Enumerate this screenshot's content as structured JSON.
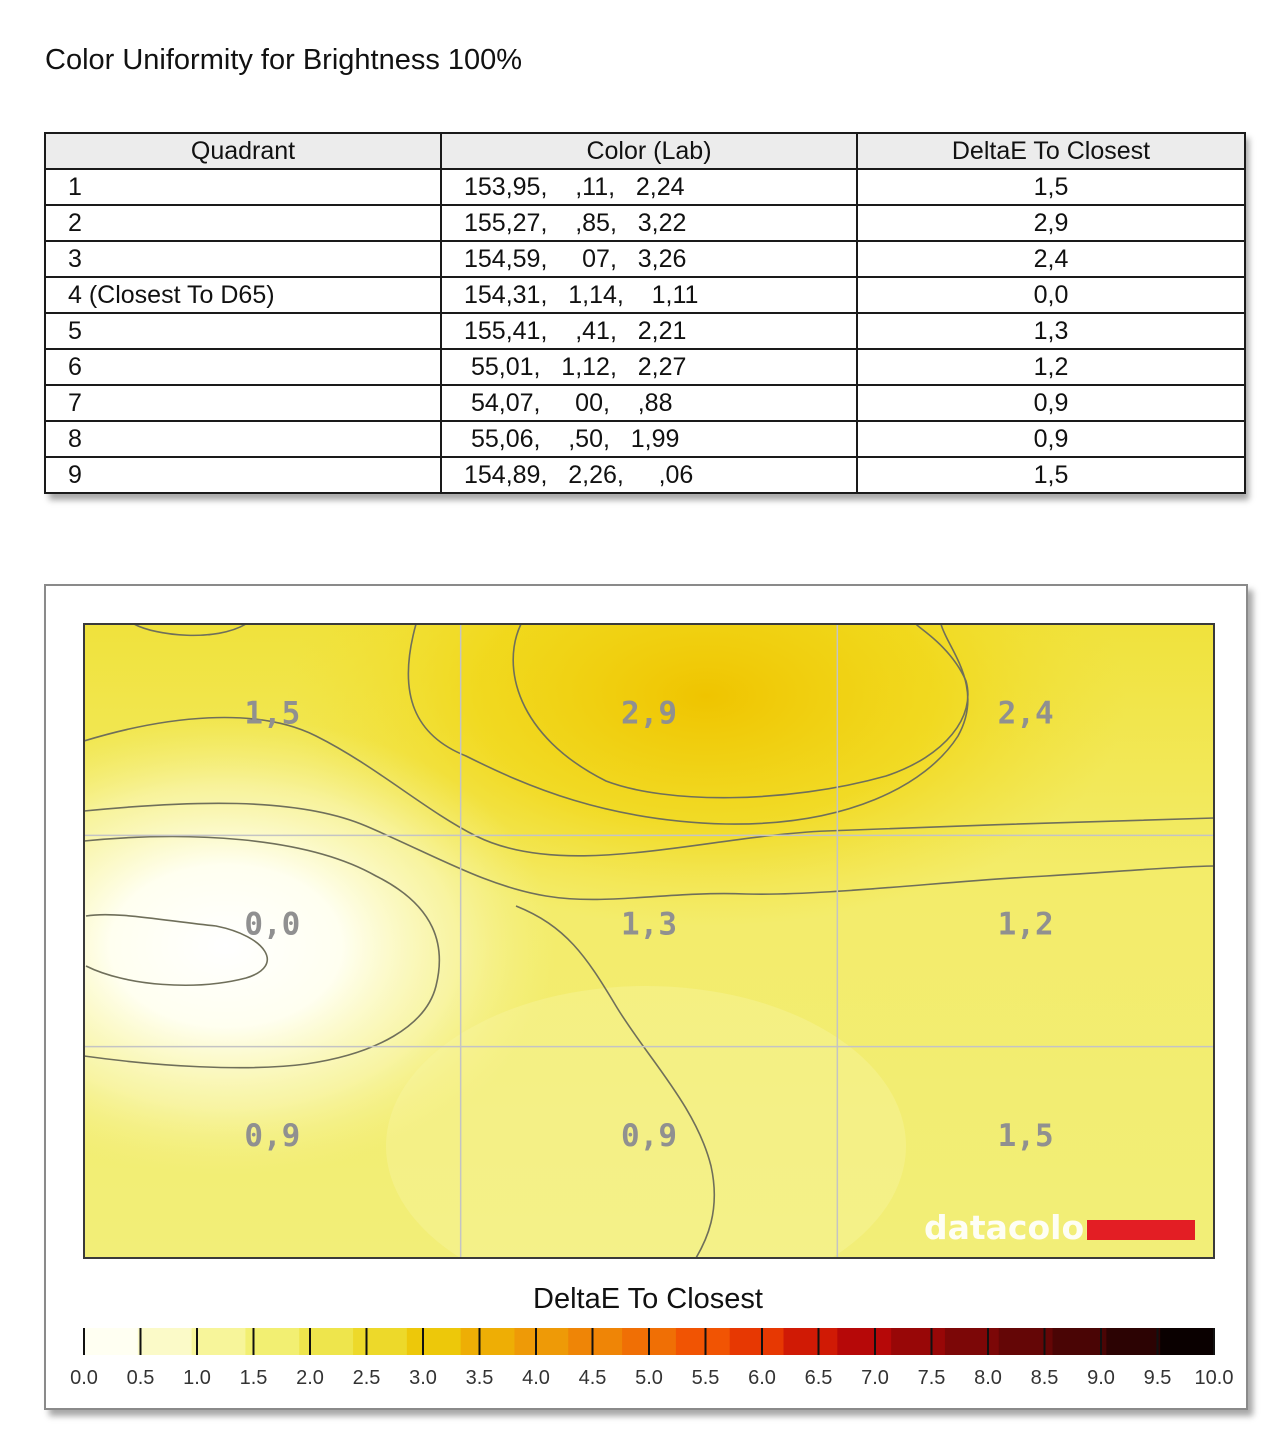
{
  "page": {
    "title": "Color Uniformity for Brightness 100%"
  },
  "table": {
    "headers": [
      "Quadrant",
      "Color (Lab)",
      "DeltaE To Closest"
    ],
    "rows": [
      {
        "quadrant": "1",
        "lab": "153,95,    ,11,   2,24",
        "delta": "1,5"
      },
      {
        "quadrant": "2",
        "lab": "155,27,    ,85,   3,22",
        "delta": "2,9"
      },
      {
        "quadrant": "3",
        "lab": "154,59,     07,   3,26",
        "delta": "2,4"
      },
      {
        "quadrant": "4 (Closest To D65)",
        "lab": "154,31,   1,14,    1,11",
        "delta": "0,0"
      },
      {
        "quadrant": "5",
        "lab": "155,41,    ,41,   2,21",
        "delta": "1,3"
      },
      {
        "quadrant": "6",
        "lab": " 55,01,   1,12,   2,27",
        "delta": "1,2"
      },
      {
        "quadrant": "7",
        "lab": " 54,07,     00,    ,88",
        "delta": "0,9"
      },
      {
        "quadrant": "8",
        "lab": " 55,06,    ,50,   1,99",
        "delta": "0,9"
      },
      {
        "quadrant": "9",
        "lab": "154,89,   2,26,     ,06",
        "delta": "1,5"
      }
    ]
  },
  "chart_data": {
    "type": "heatmap",
    "grid": {
      "rows": 3,
      "cols": 3
    },
    "values": [
      [
        1.5,
        2.9,
        2.4
      ],
      [
        0.0,
        1.3,
        1.2
      ],
      [
        0.9,
        0.9,
        1.5
      ]
    ],
    "cell_labels": [
      [
        "1,5",
        "2,9",
        "2,4"
      ],
      [
        "0,0",
        "1,3",
        "1,2"
      ],
      [
        "0,9",
        "0,9",
        "1,5"
      ]
    ],
    "scale_title": "DeltaE To Closest",
    "scale_range": [
      0,
      10
    ],
    "scale_ticks": [
      "0.0",
      "0.5",
      "1.0",
      "1.5",
      "2.0",
      "2.5",
      "3.0",
      "3.5",
      "4.0",
      "4.5",
      "5.0",
      "5.5",
      "6.0",
      "6.5",
      "7.0",
      "7.5",
      "8.0",
      "8.5",
      "9.0",
      "9.5",
      "10.0"
    ],
    "scale_colors": [
      "#fffff2",
      "#fbfac8",
      "#f7f59a",
      "#f2ef72",
      "#eee54c",
      "#edd92a",
      "#edc80a",
      "#eeae05",
      "#ee9a07",
      "#ef8506",
      "#f06f05",
      "#f15403",
      "#e73802",
      "#d01a05",
      "#b60808",
      "#980707",
      "#7c0707",
      "#640606",
      "#4a0505",
      "#2c0303",
      "#0a0000"
    ],
    "contours": true,
    "grid_lines": true,
    "watermark": "datacolor",
    "colors": {
      "brand_red": "#e31e24"
    }
  }
}
